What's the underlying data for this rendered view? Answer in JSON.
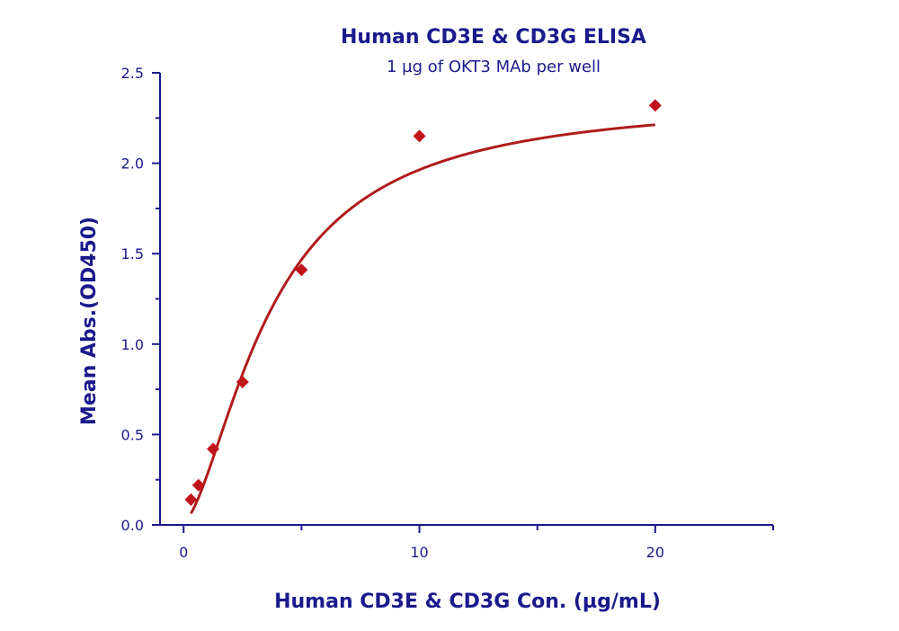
{
  "chart_data": {
    "type": "scatter",
    "title": "Human CD3E & CD3G ELISA",
    "subtitle": "1 µg of OKT3 MAb per well",
    "xlabel": "Human CD3E & CD3G Con. (µg/mL)",
    "ylabel": "Mean Abs.(OD450)",
    "xlim": [
      -1,
      25
    ],
    "ylim": [
      0,
      2.5
    ],
    "x_ticks": [
      0,
      10,
      20
    ],
    "x_tick_labels": [
      "0",
      "10",
      "20"
    ],
    "x_minor_ticks": [
      5,
      15,
      25
    ],
    "y_ticks": [
      0,
      0.5,
      1.0,
      1.5,
      2.0,
      2.5
    ],
    "y_tick_labels": [
      "0.0",
      "0.5",
      "1.0",
      "1.5",
      "2.0",
      "2.5"
    ],
    "grid": false,
    "series": [
      {
        "x": [
          0.31,
          0.63,
          1.25,
          2.5,
          5,
          10,
          20
        ],
        "y": [
          0.14,
          0.22,
          0.42,
          0.79,
          1.41,
          2.15,
          2.32
        ],
        "fit": "sigmoid",
        "fit_params": {
          "bottom": 0.02,
          "top": 2.36,
          "ec50": 3.7,
          "hill": 1.6
        }
      }
    ],
    "colors": {
      "marker": "#c0151a",
      "curve": "#b01c1c",
      "text": "#1a1a8c",
      "axis": "#1a1a8c"
    }
  }
}
